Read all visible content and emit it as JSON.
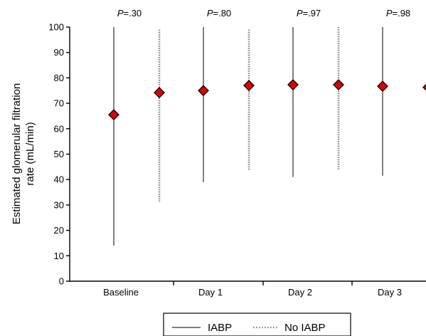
{
  "chart_data": {
    "type": "scatter",
    "title": "",
    "ylabel_lines": [
      "Estimated glomerular filtration",
      "rate (mL/min)"
    ],
    "xlabel": "",
    "ylim": [
      0,
      100
    ],
    "yticks": [
      0,
      10,
      20,
      30,
      40,
      50,
      60,
      70,
      80,
      90,
      100
    ],
    "categories": [
      "Baseline",
      "Day 1",
      "Day 2",
      "Day 3"
    ],
    "p_values": [
      "=.30",
      "=.80",
      "=.97",
      "=.98"
    ],
    "p_prefix": "P",
    "series": [
      {
        "name": "IABP",
        "line_style": "solid",
        "points": [
          {
            "mean": 65.5,
            "low": 14,
            "high": 100
          },
          {
            "mean": 75,
            "low": 39,
            "high": 100
          },
          {
            "mean": 77.3,
            "low": 41,
            "high": 100
          },
          {
            "mean": 76.7,
            "low": 41.5,
            "high": 100
          }
        ]
      },
      {
        "name": "No IABP",
        "line_style": "dotted",
        "points": [
          {
            "mean": 74.2,
            "low": 31,
            "high": 99
          },
          {
            "mean": 77,
            "low": 43.5,
            "high": 99
          },
          {
            "mean": 77.3,
            "low": 44,
            "high": 100
          },
          {
            "mean": 76.3,
            "low": null,
            "high": null
          }
        ]
      }
    ],
    "marker_color": "#e00000",
    "marker_shape": "diamond",
    "legend": {
      "position": "bottom-center",
      "entries": [
        "IABP",
        "No IABP"
      ]
    }
  }
}
